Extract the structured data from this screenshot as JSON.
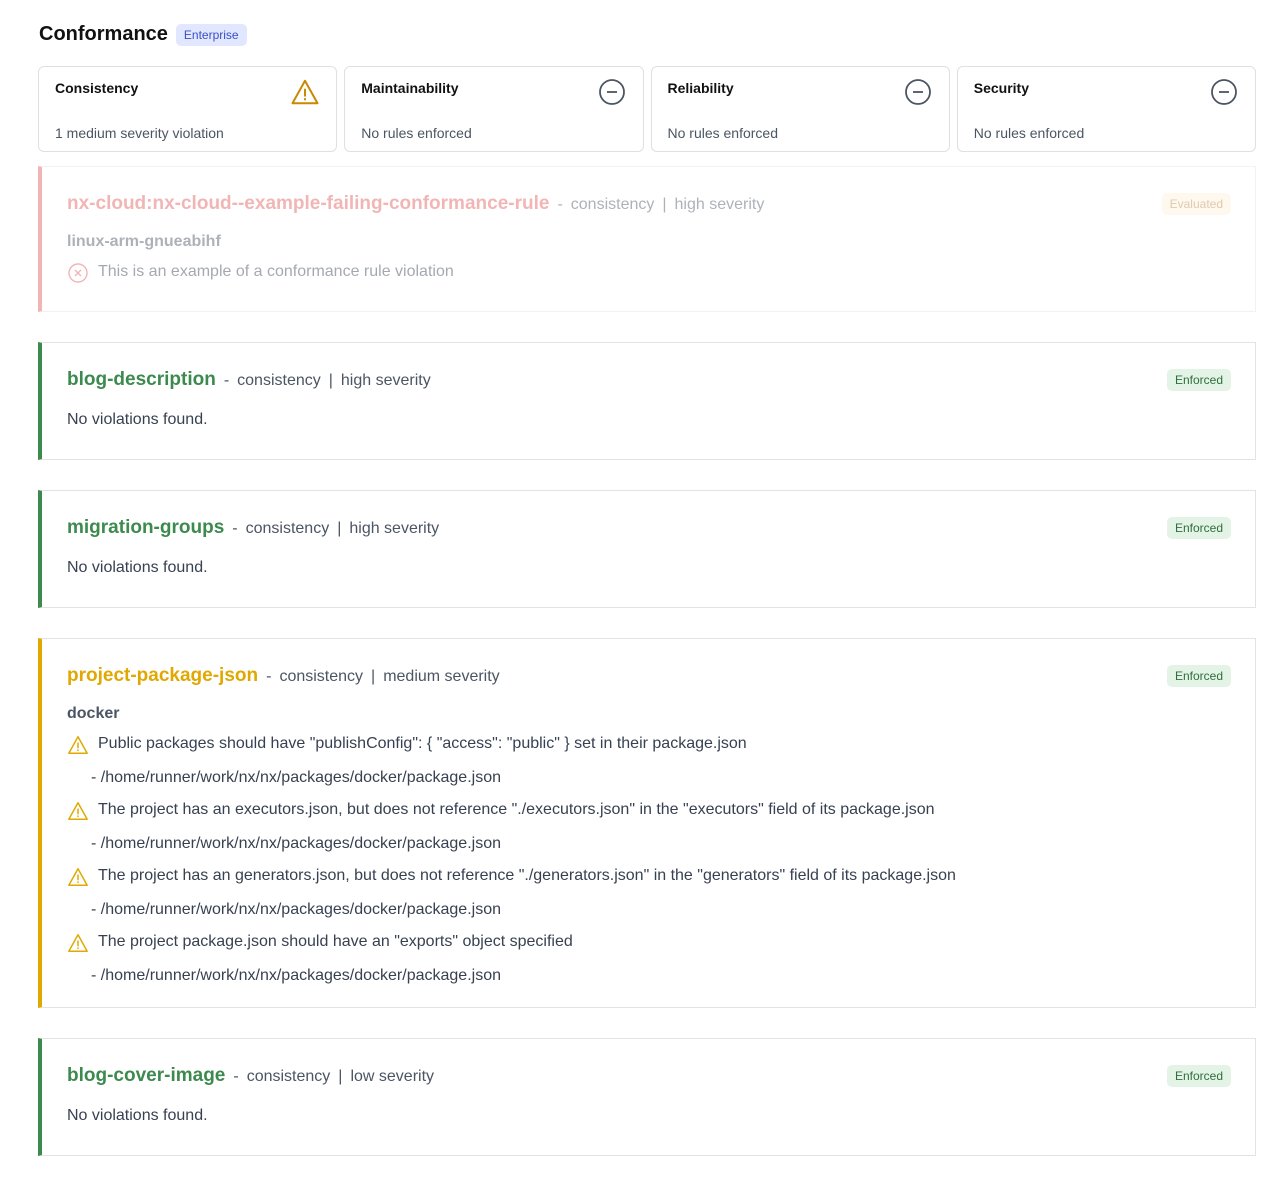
{
  "header": {
    "title": "Conformance",
    "badge": "Enterprise"
  },
  "categories": [
    {
      "name": "Consistency",
      "description": "1 medium severity violation",
      "icon": "warning-icon"
    },
    {
      "name": "Maintainability",
      "description": "No rules enforced",
      "icon": "minus-circle-icon"
    },
    {
      "name": "Reliability",
      "description": "No rules enforced",
      "icon": "minus-circle-icon"
    },
    {
      "name": "Security",
      "description": "No rules enforced",
      "icon": "minus-circle-icon"
    }
  ],
  "colors": {
    "fail": "#e25c5c",
    "pass": "#3d8a4f",
    "warn": "#e0a800",
    "evaluated_bg": "#fdf0dc",
    "enforced_bg": "#e3f3e6"
  },
  "rules": [
    {
      "name": "nx-cloud:nx-cloud--example-failing-conformance-rule",
      "category": "consistency",
      "severity": "high severity",
      "status": "Evaluated",
      "project": "linux-arm-gnueabihf",
      "violations": [
        {
          "message": "This is an example of a conformance rule violation"
        }
      ]
    },
    {
      "name": "blog-description",
      "category": "consistency",
      "severity": "high severity",
      "status": "Enforced",
      "body": "No violations found."
    },
    {
      "name": "migration-groups",
      "category": "consistency",
      "severity": "high severity",
      "status": "Enforced",
      "body": "No violations found."
    },
    {
      "name": "project-package-json",
      "category": "consistency",
      "severity": "medium severity",
      "status": "Enforced",
      "project": "docker",
      "violations": [
        {
          "message": "Public packages should have \"publishConfig\": { \"access\": \"public\" } set in their package.json",
          "path": "- /home/runner/work/nx/nx/packages/docker/package.json"
        },
        {
          "message": "The project has an executors.json, but does not reference \"./executors.json\" in the \"executors\" field of its package.json",
          "path": "- /home/runner/work/nx/nx/packages/docker/package.json"
        },
        {
          "message": "The project has an generators.json, but does not reference \"./generators.json\" in the \"generators\" field of its package.json",
          "path": "- /home/runner/work/nx/nx/packages/docker/package.json"
        },
        {
          "message": "The project package.json should have an \"exports\" object specified",
          "path": "- /home/runner/work/nx/nx/packages/docker/package.json"
        }
      ]
    },
    {
      "name": "blog-cover-image",
      "category": "consistency",
      "severity": "low severity",
      "status": "Enforced",
      "body": "No violations found."
    }
  ]
}
